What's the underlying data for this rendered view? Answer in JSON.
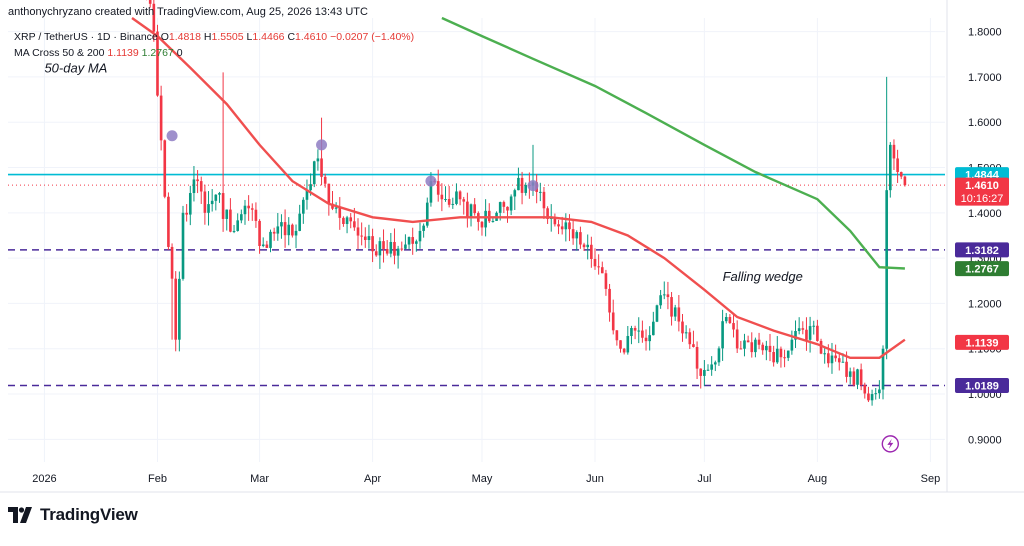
{
  "header": {
    "credit": "anthonychryzano created with TradingView.com, Aug 25, 2026 13:43 UTC"
  },
  "legend": {
    "symbol": "XRP / TetherUS · 1D · Binance",
    "open_label": "O",
    "open": "1.4818",
    "high_label": "H",
    "high": "1.5505",
    "low_label": "L",
    "low": "1.4466",
    "close_label": "C",
    "close": "1.4610",
    "change": "−0.0207 (−1.40%)",
    "ma_title": "MA Cross 50 & 200",
    "ma50": "1.1139",
    "ma200": "1.2767",
    "ma_suffix": "0"
  },
  "watermark": {
    "text": "TradingView",
    "logo_icon": "tradingview-logo-icon"
  },
  "colors": {
    "up": "#089981",
    "down": "#f23645",
    "ma50": "#f04f4f",
    "ma200": "#4caf50",
    "resistance": "#00bcd4",
    "support": "#4a2a9a",
    "pivot": "#8e7cc3"
  },
  "chart_data": {
    "type": "candlestick",
    "title": "",
    "xlabel": "",
    "ylabel": "",
    "ylim": [
      0.85,
      1.83
    ],
    "y_ticks": [
      "1.8000",
      "1.7000",
      "1.6000",
      "1.5000",
      "1.4000",
      "1.3000",
      "1.2000",
      "1.1000",
      "1.0000",
      "0.9000"
    ],
    "x_ticks": [
      {
        "label": "2026",
        "date": "2026-01-01"
      },
      {
        "label": "Feb",
        "date": "2026-02-01"
      },
      {
        "label": "Mar",
        "date": "2026-03-01"
      },
      {
        "label": "Apr",
        "date": "2026-04-01"
      },
      {
        "label": "May",
        "date": "2026-05-01"
      },
      {
        "label": "Jun",
        "date": "2026-06-01"
      },
      {
        "label": "Jul",
        "date": "2026-07-01"
      },
      {
        "label": "Aug",
        "date": "2026-08-01"
      },
      {
        "label": "Sep",
        "date": "2026-09-01"
      }
    ],
    "xlim": [
      "2025-12-22",
      "2026-09-05"
    ],
    "anchors": [
      [
        "2026-01-24",
        2.1
      ],
      [
        "2026-01-31",
        1.8
      ],
      [
        "2026-02-02",
        1.56
      ],
      [
        "2026-02-06",
        1.12
      ],
      [
        "2026-02-08",
        1.4
      ],
      [
        "2026-02-12",
        1.47
      ],
      [
        "2026-02-14",
        1.4
      ],
      [
        "2026-02-17",
        1.44
      ],
      [
        "2026-02-22",
        1.36
      ],
      [
        "2026-02-26",
        1.41
      ],
      [
        "2026-03-02",
        1.33
      ],
      [
        "2026-03-06",
        1.37
      ],
      [
        "2026-03-10",
        1.35
      ],
      [
        "2026-03-14",
        1.45
      ],
      [
        "2026-03-17",
        1.52
      ],
      [
        "2026-03-20",
        1.42
      ],
      [
        "2026-03-25",
        1.39
      ],
      [
        "2026-03-30",
        1.34
      ],
      [
        "2026-04-05",
        1.31
      ],
      [
        "2026-04-10",
        1.33
      ],
      [
        "2026-04-14",
        1.36
      ],
      [
        "2026-04-17",
        1.47
      ],
      [
        "2026-04-20",
        1.43
      ],
      [
        "2026-04-25",
        1.43
      ],
      [
        "2026-04-30",
        1.38
      ],
      [
        "2026-05-05",
        1.4
      ],
      [
        "2026-05-10",
        1.45
      ],
      [
        "2026-05-14",
        1.46
      ],
      [
        "2026-05-18",
        1.41
      ],
      [
        "2026-05-22",
        1.37
      ],
      [
        "2026-05-28",
        1.33
      ],
      [
        "2026-06-02",
        1.28
      ],
      [
        "2026-06-05",
        1.18
      ],
      [
        "2026-06-08",
        1.1
      ],
      [
        "2026-06-12",
        1.14
      ],
      [
        "2026-06-16",
        1.13
      ],
      [
        "2026-06-20",
        1.22
      ],
      [
        "2026-06-24",
        1.16
      ],
      [
        "2026-06-27",
        1.11
      ],
      [
        "2026-06-30",
        1.04
      ],
      [
        "2026-07-04",
        1.07
      ],
      [
        "2026-07-07",
        1.17
      ],
      [
        "2026-07-11",
        1.1
      ],
      [
        "2026-07-15",
        1.12
      ],
      [
        "2026-07-20",
        1.07
      ],
      [
        "2026-07-25",
        1.12
      ],
      [
        "2026-07-30",
        1.15
      ],
      [
        "2026-08-03",
        1.09
      ],
      [
        "2026-08-07",
        1.07
      ],
      [
        "2026-08-10",
        1.05
      ],
      [
        "2026-08-13",
        1.02
      ],
      [
        "2026-08-16",
        1.0
      ],
      [
        "2026-08-18",
        1.01
      ],
      [
        "2026-08-19",
        1.1
      ],
      [
        "2026-08-20",
        1.45
      ],
      [
        "2026-08-21",
        1.55
      ],
      [
        "2026-08-22",
        1.52
      ],
      [
        "2026-08-23",
        1.49
      ],
      [
        "2026-08-24",
        1.48
      ],
      [
        "2026-08-25",
        1.461
      ]
    ],
    "spikes": [
      {
        "date": "2026-02-05",
        "low": 1.12
      },
      {
        "date": "2026-02-19",
        "high": 1.71
      },
      {
        "date": "2026-03-18",
        "high": 1.61
      },
      {
        "date": "2026-05-15",
        "high": 1.55
      },
      {
        "date": "2026-08-20",
        "high": 1.7
      },
      {
        "date": "2026-08-14",
        "low": 0.99
      }
    ],
    "ma50_series": [
      [
        "2026-01-25",
        1.83
      ],
      [
        "2026-02-01",
        1.79
      ],
      [
        "2026-02-10",
        1.72
      ],
      [
        "2026-02-20",
        1.64
      ],
      [
        "2026-03-01",
        1.55
      ],
      [
        "2026-03-10",
        1.47
      ],
      [
        "2026-03-20",
        1.42
      ],
      [
        "2026-04-01",
        1.39
      ],
      [
        "2026-04-12",
        1.38
      ],
      [
        "2026-04-25",
        1.39
      ],
      [
        "2026-05-10",
        1.39
      ],
      [
        "2026-05-20",
        1.39
      ],
      [
        "2026-05-31",
        1.38
      ],
      [
        "2026-06-10",
        1.35
      ],
      [
        "2026-06-20",
        1.3
      ],
      [
        "2026-07-01",
        1.23
      ],
      [
        "2026-07-10",
        1.17
      ],
      [
        "2026-07-20",
        1.14
      ],
      [
        "2026-08-01",
        1.11
      ],
      [
        "2026-08-10",
        1.08
      ],
      [
        "2026-08-18",
        1.08
      ],
      [
        "2026-08-25",
        1.12
      ]
    ],
    "ma200_series": [
      [
        "2026-04-20",
        1.83
      ],
      [
        "2026-05-01",
        1.79
      ],
      [
        "2026-05-15",
        1.74
      ],
      [
        "2026-06-01",
        1.68
      ],
      [
        "2026-06-15",
        1.62
      ],
      [
        "2026-07-01",
        1.55
      ],
      [
        "2026-07-15",
        1.49
      ],
      [
        "2026-08-01",
        1.43
      ],
      [
        "2026-08-10",
        1.36
      ],
      [
        "2026-08-18",
        1.28
      ],
      [
        "2026-08-25",
        1.277
      ]
    ],
    "pivots": [
      {
        "date": "2026-02-05",
        "value": 1.57
      },
      {
        "date": "2026-03-18",
        "value": 1.55
      },
      {
        "date": "2026-04-17",
        "value": 1.47
      },
      {
        "date": "2026-05-15",
        "value": 1.46
      }
    ],
    "levels": [
      {
        "name": "resistance",
        "value": 1.4844,
        "label": "1.4844",
        "style": "solid"
      },
      {
        "name": "support-upper",
        "value": 1.3182,
        "label": "1.3182",
        "style": "dashed"
      },
      {
        "name": "support-lower",
        "value": 1.0189,
        "label": "1.0189",
        "style": "dashed"
      }
    ],
    "price_tags": [
      {
        "value": 1.4844,
        "label": "1.4844",
        "kind": "resistance"
      },
      {
        "value": 1.461,
        "label": "1.4610",
        "kind": "last",
        "countdown": "10:16:27"
      },
      {
        "value": 1.3182,
        "label": "1.3182",
        "kind": "support"
      },
      {
        "value": 1.2767,
        "label": "1.2767",
        "kind": "ma200"
      },
      {
        "value": 1.1139,
        "label": "1.1139",
        "kind": "ma50"
      },
      {
        "value": 1.0189,
        "label": "1.0189",
        "kind": "support"
      }
    ],
    "annotations": [
      {
        "text": "50-day MA",
        "date": "2026-01-01",
        "value": 1.71
      },
      {
        "text": "Falling wedge",
        "date": "2026-07-06",
        "value": 1.25
      }
    ],
    "lightning_icon": {
      "name": "lightning-icon",
      "date": "2026-08-21",
      "value": 0.89
    }
  }
}
